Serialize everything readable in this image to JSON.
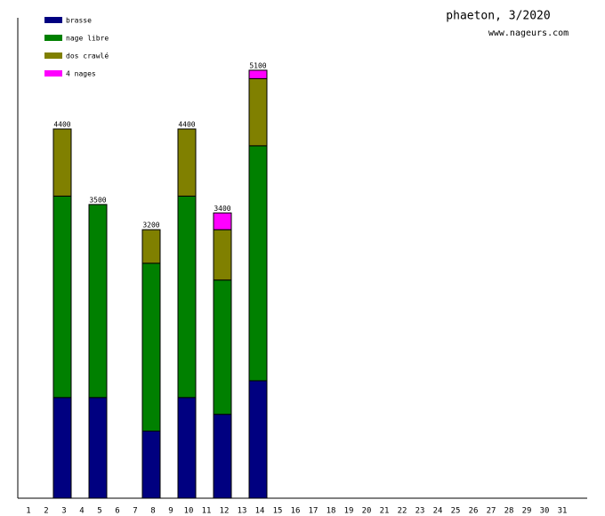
{
  "chart_data": {
    "type": "stacked-bar",
    "title": "phaeton, 3/2020",
    "subtitle": "www.nageurs.com",
    "categories": [
      1,
      2,
      3,
      4,
      5,
      6,
      7,
      8,
      9,
      10,
      11,
      12,
      13,
      14,
      15,
      16,
      17,
      18,
      19,
      20,
      21,
      22,
      23,
      24,
      25,
      26,
      27,
      28,
      29,
      30,
      31
    ],
    "series": [
      {
        "name": "brasse",
        "color": "#000080",
        "values": [
          null,
          null,
          1200,
          null,
          1200,
          null,
          null,
          800,
          null,
          1200,
          null,
          1000,
          null,
          1400,
          null,
          null,
          null,
          null,
          null,
          null,
          null,
          null,
          null,
          null,
          null,
          null,
          null,
          null,
          null,
          null,
          null
        ]
      },
      {
        "name": "nage libre",
        "color": "#008000",
        "values": [
          null,
          null,
          2400,
          null,
          2300,
          null,
          null,
          2000,
          null,
          2400,
          null,
          1600,
          null,
          2800,
          null,
          null,
          null,
          null,
          null,
          null,
          null,
          null,
          null,
          null,
          null,
          null,
          null,
          null,
          null,
          null,
          null
        ]
      },
      {
        "name": "dos crawlé",
        "color": "#808000",
        "values": [
          null,
          null,
          800,
          null,
          null,
          null,
          null,
          400,
          null,
          800,
          null,
          600,
          null,
          800,
          null,
          null,
          null,
          null,
          null,
          null,
          null,
          null,
          null,
          null,
          null,
          null,
          null,
          null,
          null,
          null,
          null
        ]
      },
      {
        "name": "4 nages",
        "color": "#ff00ff",
        "values": [
          null,
          null,
          null,
          null,
          null,
          null,
          null,
          null,
          null,
          null,
          null,
          200,
          null,
          100,
          null,
          null,
          null,
          null,
          null,
          null,
          null,
          null,
          null,
          null,
          null,
          null,
          null,
          null,
          null,
          null,
          null
        ]
      }
    ],
    "totals": [
      null,
      null,
      4400,
      null,
      3500,
      null,
      null,
      3200,
      null,
      4400,
      null,
      3400,
      null,
      5100,
      null,
      null,
      null,
      null,
      null,
      null,
      null,
      null,
      null,
      null,
      null,
      null,
      null,
      null,
      null,
      null,
      null
    ],
    "ylim": [
      0,
      5725
    ]
  }
}
